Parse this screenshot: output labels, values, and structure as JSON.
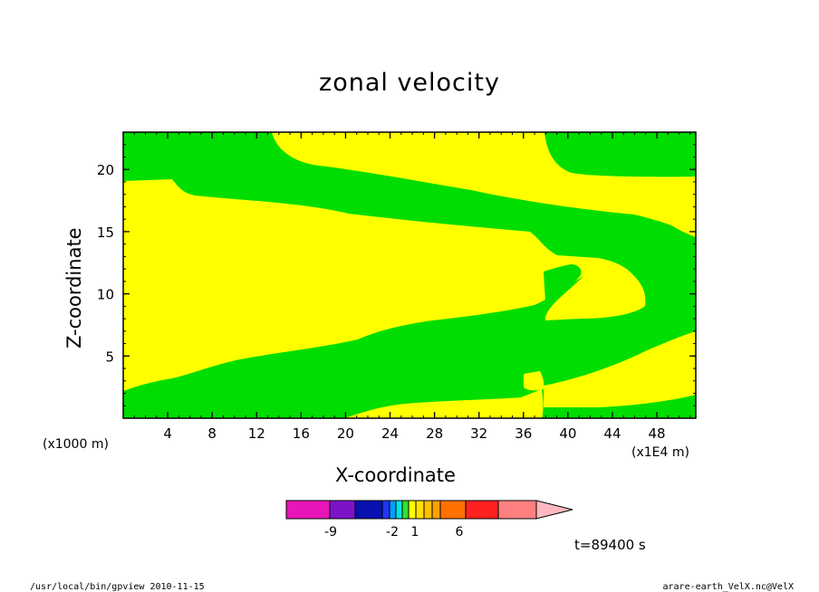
{
  "title": "zonal velocity",
  "chart_data": {
    "type": "heatmap",
    "title": "zonal velocity",
    "xlabel": "X-coordinate",
    "ylabel": "Z-coordinate",
    "x_unit": "(x1E4 m)",
    "y_unit": "(x1000 m)",
    "xlim": [
      0,
      51.5
    ],
    "ylim": [
      0,
      23
    ],
    "x_ticks": [
      "4",
      "8",
      "12",
      "16",
      "20",
      "24",
      "28",
      "32",
      "36",
      "40",
      "44",
      "48"
    ],
    "y_ticks": [
      "5",
      "10",
      "15",
      "20"
    ],
    "field_colors": {
      "green": "#00dd00",
      "yellow": "#ffff00"
    },
    "colorbar": {
      "labels": [
        "-9",
        "-2",
        "1",
        "6"
      ],
      "colors": [
        "#e815b8",
        "#7d12c8",
        "#0810b0",
        "#2236f0",
        "#00a0ff",
        "#00e5e5",
        "#2fe22f",
        "#ffff00",
        "#ffe000",
        "#ffc000",
        "#ffa000",
        "#ff7000",
        "#ff2020",
        "#ff8080",
        "#ffb8c0"
      ]
    }
  },
  "annotations": {
    "time": "t=89400 s",
    "footer_left": "/usr/local/bin/gpview   2010-11-15",
    "footer_right": "arare-earth_VelX.nc@VelX"
  }
}
